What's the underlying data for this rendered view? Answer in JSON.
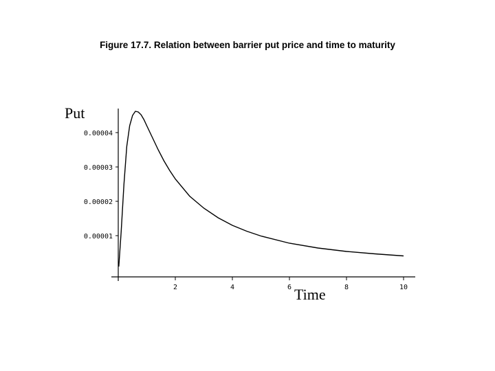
{
  "title": "Figure 17.7. Relation between barrier put price and time to maturity",
  "chart_data": {
    "type": "line",
    "xlabel": "Time",
    "ylabel": "Put",
    "xlim": [
      0,
      10
    ],
    "ylim": [
      0,
      4.7e-05
    ],
    "x_ticks": [
      "2",
      "4",
      "6",
      "8",
      "10"
    ],
    "x_tick_values": [
      2,
      4,
      6,
      8,
      10
    ],
    "y_ticks": [
      "0.00001",
      "0.00002",
      "0.00003",
      "0.00004"
    ],
    "y_tick_values": [
      1e-05,
      2e-05,
      3e-05,
      4e-05
    ],
    "grid": false,
    "series": [
      {
        "x": [
          0.02,
          0.1,
          0.2,
          0.3,
          0.4,
          0.5,
          0.6,
          0.7,
          0.8,
          0.9,
          1.0,
          1.2,
          1.4,
          1.6,
          1.8,
          2.0,
          2.5,
          3.0,
          3.5,
          4.0,
          4.5,
          5.0,
          6.0,
          7.0,
          8.0,
          9.0,
          10.0
        ],
        "values": [
          1e-06,
          1.1e-05,
          2.5e-05,
          3.6e-05,
          4.2e-05,
          4.5e-05,
          4.62e-05,
          4.6e-05,
          4.52e-05,
          4.38e-05,
          4.2e-05,
          3.85e-05,
          3.5e-05,
          3.18e-05,
          2.9e-05,
          2.65e-05,
          2.15e-05,
          1.8e-05,
          1.52e-05,
          1.3e-05,
          1.13e-05,
          9.9e-06,
          7.8e-06,
          6.4e-06,
          5.4e-06,
          4.7e-06,
          4.1e-06
        ],
        "color": "#000000"
      }
    ]
  }
}
